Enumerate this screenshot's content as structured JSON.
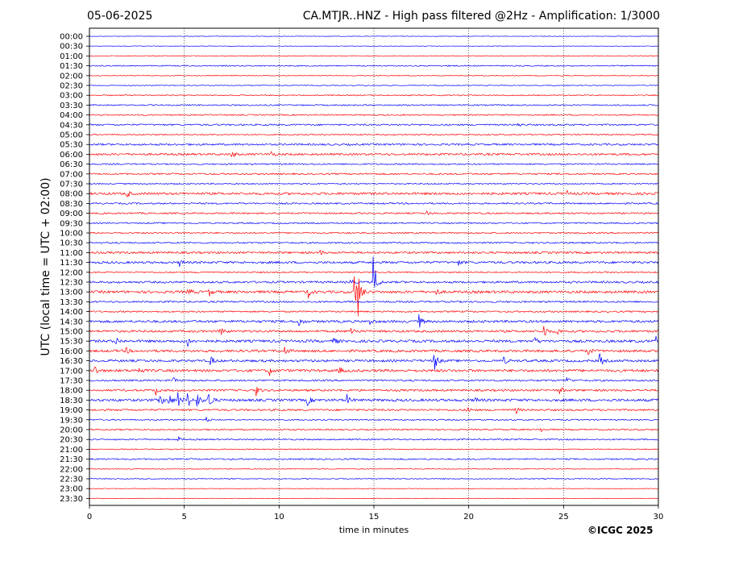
{
  "header": {
    "date": "05-06-2025",
    "title": "CA.MTJR..HNZ - High pass filtered @2Hz - Amplification: 1/3000"
  },
  "footer": {
    "copyright": "©ICGC 2025"
  },
  "chart_data": {
    "type": "line",
    "title": "CA.MTJR..HNZ - High pass filtered @2Hz - Amplification: 1/3000",
    "subtitle": "05-06-2025",
    "xlabel": "time in minutes",
    "ylabel": "UTC (local time = UTC + 02:00)",
    "xlim": [
      0,
      30
    ],
    "x_ticks": [
      0,
      5,
      10,
      15,
      20,
      25,
      30
    ],
    "x_gridlines": [
      5,
      10,
      15,
      20,
      25
    ],
    "grid": "vertical dotted",
    "colors": {
      "blue": "#0000ff",
      "red": "#ff0000",
      "axis": "#000000"
    },
    "row_labels": [
      "00:00",
      "00:30",
      "01:00",
      "01:30",
      "02:00",
      "02:30",
      "03:00",
      "03:30",
      "04:00",
      "04:30",
      "05:00",
      "05:30",
      "06:00",
      "06:30",
      "07:00",
      "07:30",
      "08:00",
      "08:30",
      "09:00",
      "09:30",
      "10:00",
      "10:30",
      "11:00",
      "11:30",
      "12:00",
      "12:30",
      "13:00",
      "13:30",
      "14:00",
      "14:30",
      "15:00",
      "15:30",
      "16:00",
      "16:30",
      "17:00",
      "17:30",
      "18:00",
      "18:30",
      "19:00",
      "19:30",
      "20:00",
      "20:30",
      "21:00",
      "21:30",
      "22:00",
      "22:30",
      "23:00",
      "23:30"
    ],
    "row_colors": [
      "blue",
      "blue",
      "red",
      "blue",
      "red",
      "blue",
      "red",
      "blue",
      "red",
      "blue",
      "red",
      "blue",
      "red",
      "blue",
      "red",
      "blue",
      "red",
      "blue",
      "red",
      "blue",
      "red",
      "blue",
      "red",
      "blue",
      "red",
      "blue",
      "red",
      "blue",
      "red",
      "blue",
      "red",
      "blue",
      "red",
      "blue",
      "red",
      "blue",
      "red",
      "blue",
      "red",
      "blue",
      "red",
      "blue",
      "red",
      "blue",
      "red",
      "blue",
      "red",
      "red"
    ],
    "noise_level": [
      0.3,
      0.3,
      0.5,
      0.7,
      0.5,
      0.5,
      0.7,
      0.8,
      0.8,
      1.0,
      0.8,
      1.2,
      1.3,
      0.9,
      1.0,
      0.8,
      1.5,
      1.0,
      1.0,
      0.9,
      0.9,
      1.0,
      1.3,
      1.4,
      0.9,
      1.3,
      1.6,
      1.1,
      1.0,
      1.5,
      1.4,
      1.6,
      1.5,
      1.5,
      1.6,
      1.1,
      1.3,
      1.6,
      1.2,
      0.8,
      0.9,
      0.9,
      0.6,
      0.9,
      0.5,
      0.6,
      0.3,
      0.3
    ],
    "events": [
      {
        "row": 3,
        "t": 19.0,
        "amp": 2.5
      },
      {
        "row": 9,
        "t": 22.6,
        "amp": 2.5
      },
      {
        "row": 12,
        "t": 7.5,
        "amp": 5
      },
      {
        "row": 12,
        "t": 9.6,
        "amp": 4
      },
      {
        "row": 16,
        "t": 2.0,
        "amp": 4
      },
      {
        "row": 16,
        "t": 25.2,
        "amp": 2.5
      },
      {
        "row": 18,
        "t": 17.8,
        "amp": 3
      },
      {
        "row": 22,
        "t": 12.2,
        "amp": 2.5
      },
      {
        "row": 23,
        "t": 4.8,
        "amp": 4
      },
      {
        "row": 23,
        "t": 19.5,
        "amp": 3
      },
      {
        "row": 25,
        "t": 13.7,
        "amp": 5
      },
      {
        "row": 25,
        "t": 15.0,
        "amp": 30
      },
      {
        "row": 26,
        "t": 5.2,
        "amp": 6
      },
      {
        "row": 26,
        "t": 6.3,
        "amp": 5
      },
      {
        "row": 26,
        "t": 11.5,
        "amp": 9
      },
      {
        "row": 26,
        "t": 14.0,
        "amp": 28
      },
      {
        "row": 26,
        "t": 14.2,
        "amp": 22
      },
      {
        "row": 26,
        "t": 18.3,
        "amp": 4
      },
      {
        "row": 29,
        "t": 11.0,
        "amp": 10
      },
      {
        "row": 29,
        "t": 14.8,
        "amp": 4
      },
      {
        "row": 29,
        "t": 17.4,
        "amp": 8
      },
      {
        "row": 30,
        "t": 6.9,
        "amp": 9
      },
      {
        "row": 30,
        "t": 13.8,
        "amp": 7
      },
      {
        "row": 30,
        "t": 24.0,
        "amp": 8
      },
      {
        "row": 30,
        "t": 24.7,
        "amp": 4
      },
      {
        "row": 31,
        "t": 1.4,
        "amp": 5
      },
      {
        "row": 31,
        "t": 5.2,
        "amp": 6
      },
      {
        "row": 31,
        "t": 12.9,
        "amp": 5
      },
      {
        "row": 31,
        "t": 23.5,
        "amp": 5
      },
      {
        "row": 31,
        "t": 29.9,
        "amp": 5
      },
      {
        "row": 32,
        "t": 1.9,
        "amp": 5
      },
      {
        "row": 32,
        "t": 10.3,
        "amp": 6
      },
      {
        "row": 32,
        "t": 26.3,
        "amp": 6
      },
      {
        "row": 33,
        "t": 6.4,
        "amp": 6
      },
      {
        "row": 33,
        "t": 18.2,
        "amp": 14
      },
      {
        "row": 33,
        "t": 21.8,
        "amp": 7
      },
      {
        "row": 33,
        "t": 26.9,
        "amp": 9
      },
      {
        "row": 34,
        "t": 0.3,
        "amp": 6
      },
      {
        "row": 34,
        "t": 2.6,
        "amp": 5
      },
      {
        "row": 34,
        "t": 9.5,
        "amp": 5
      },
      {
        "row": 34,
        "t": 13.2,
        "amp": 4
      },
      {
        "row": 35,
        "t": 4.4,
        "amp": 4
      },
      {
        "row": 35,
        "t": 25.2,
        "amp": 4
      },
      {
        "row": 36,
        "t": 3.5,
        "amp": 5
      },
      {
        "row": 36,
        "t": 8.8,
        "amp": 6
      },
      {
        "row": 36,
        "t": 24.8,
        "amp": 6
      },
      {
        "row": 37,
        "t": 3.7,
        "amp": 9
      },
      {
        "row": 37,
        "t": 4.2,
        "amp": 8
      },
      {
        "row": 37,
        "t": 4.7,
        "amp": 10
      },
      {
        "row": 37,
        "t": 5.2,
        "amp": 9
      },
      {
        "row": 37,
        "t": 5.7,
        "amp": 8
      },
      {
        "row": 37,
        "t": 6.3,
        "amp": 14
      },
      {
        "row": 37,
        "t": 11.5,
        "amp": 6
      },
      {
        "row": 37,
        "t": 13.6,
        "amp": 6
      },
      {
        "row": 37,
        "t": 20.3,
        "amp": 6
      },
      {
        "row": 38,
        "t": 20.0,
        "amp": 3
      },
      {
        "row": 38,
        "t": 22.5,
        "amp": 4
      },
      {
        "row": 39,
        "t": 6.2,
        "amp": 3
      },
      {
        "row": 40,
        "t": 23.8,
        "amp": 3
      },
      {
        "row": 41,
        "t": 4.7,
        "amp": 3
      }
    ]
  }
}
